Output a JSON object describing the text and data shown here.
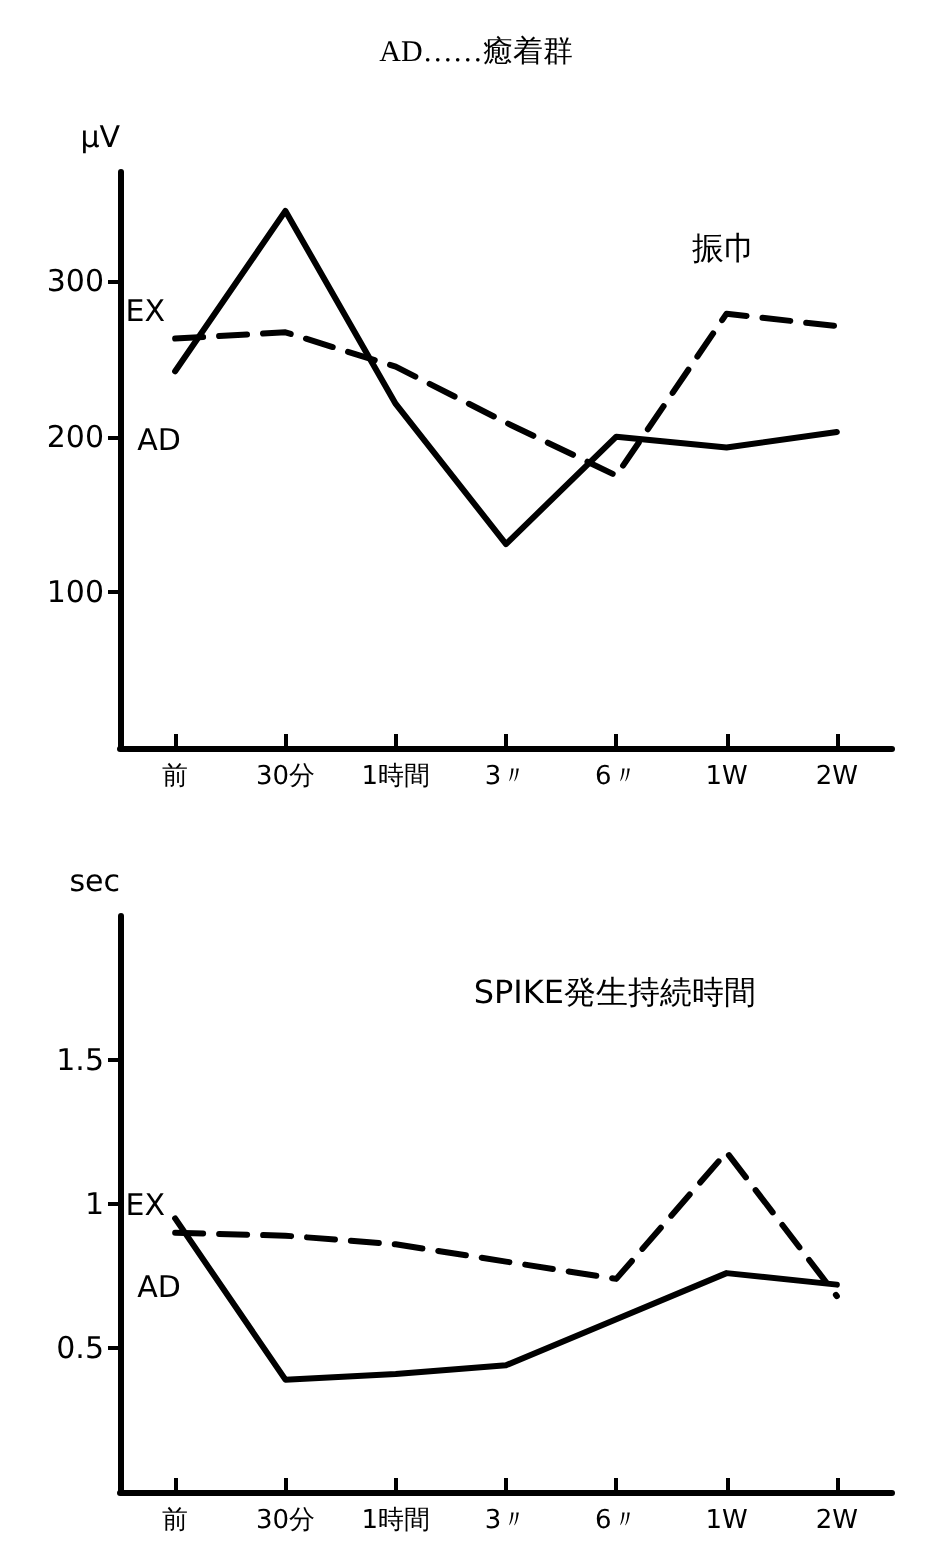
{
  "chart_data": [
    {
      "type": "line",
      "title": "AD……癒着群",
      "ylabel": "µV",
      "annotations": [
        "振巾"
      ],
      "categories": [
        "前",
        "30分",
        "1時間",
        "3〃",
        "6〃",
        "1W",
        "2W"
      ],
      "ylim": [
        0,
        370
      ],
      "yticks": [
        100,
        200,
        300
      ],
      "grid": false,
      "legend": false,
      "marker": "none",
      "series": [
        {
          "name": "EX",
          "color": "#000000",
          "line_style": "dashed",
          "values": [
            263,
            267,
            245,
            209,
            175,
            279,
            271
          ]
        },
        {
          "name": "AD",
          "color": "#000000",
          "line_style": "solid",
          "values": [
            242,
            345,
            221,
            131,
            200,
            193,
            203
          ]
        }
      ]
    },
    {
      "type": "line",
      "ylabel": "sec",
      "annotations": [
        "SPIKE発生持続時間"
      ],
      "categories": [
        "前",
        "30分",
        "1時間",
        "3〃",
        "6〃",
        "1W",
        "2W"
      ],
      "ylim": [
        0,
        2.0
      ],
      "yticks": [
        0.5,
        1.0,
        1.5
      ],
      "grid": false,
      "legend": false,
      "marker": "none",
      "series": [
        {
          "name": "EX",
          "color": "#000000",
          "line_style": "dashed",
          "values": [
            0.9,
            0.89,
            0.86,
            0.8,
            0.74,
            1.18,
            0.68
          ]
        },
        {
          "name": "AD",
          "color": "#000000",
          "line_style": "solid",
          "values": [
            0.95,
            0.39,
            0.41,
            0.44,
            0.6,
            0.76,
            0.72
          ]
        }
      ]
    }
  ]
}
